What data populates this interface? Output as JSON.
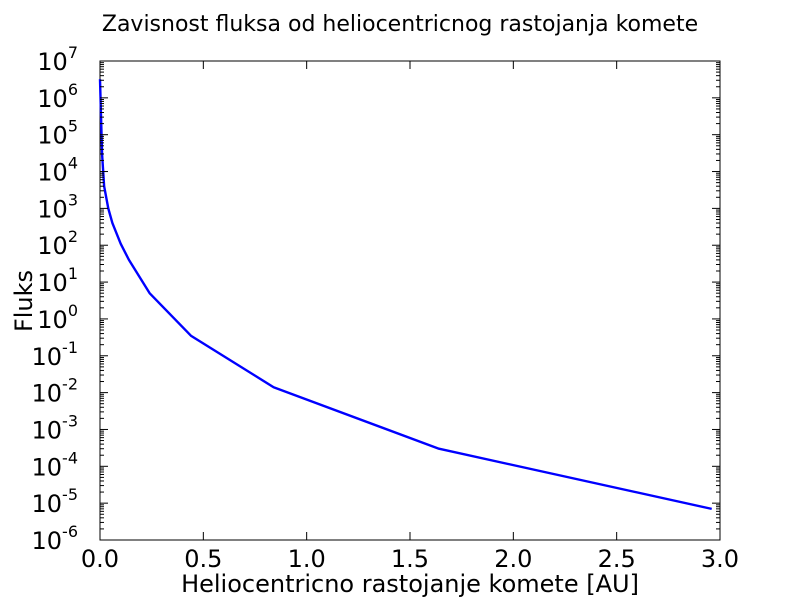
{
  "chart_data": {
    "type": "line",
    "title": "Zavisnost fluksa od heliocentricnog rastojanja komete",
    "xlabel": "Heliocentricno rastojanje komete [AU]",
    "ylabel": "Fluks",
    "xlim": [
      0.0,
      3.0
    ],
    "ylim": [
      1e-06,
      10000000.0
    ],
    "yscale": "log",
    "grid": false,
    "legend": "none",
    "x_ticks": [
      "0.0",
      "0.5",
      "1.0",
      "1.5",
      "2.0",
      "2.5",
      "3.0"
    ],
    "y_tick_exponents": [
      "-6",
      "-5",
      "-4",
      "-3",
      "-2",
      "-1",
      "0",
      "1",
      "2",
      "3",
      "4",
      "5",
      "6",
      "7"
    ],
    "y_tick_base": "10",
    "line_color": "#0000ff",
    "series": [
      {
        "x": [
          0.0,
          0.01,
          0.02,
          0.04,
          0.06,
          0.1,
          0.14,
          0.24,
          0.44,
          0.84,
          1.64,
          2.96
        ],
        "y": [
          3200000.0,
          30000.0,
          4000.0,
          1000.0,
          400.0,
          110.0,
          40,
          5.0,
          0.35,
          0.014,
          0.0003,
          7e-06
        ]
      }
    ]
  }
}
